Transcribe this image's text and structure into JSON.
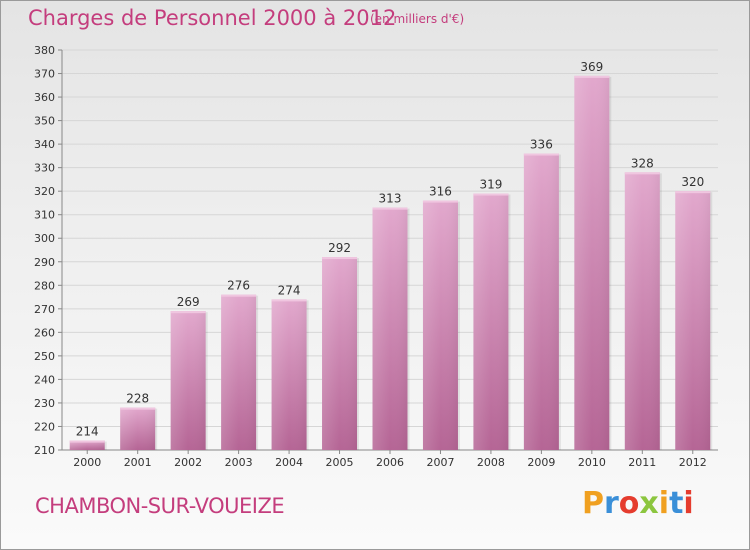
{
  "title": "Charges de Personnel 2000 à 2012",
  "subtitle": "(en milliers d'€)",
  "commune": "CHAMBON-SUR-VOUEIZE",
  "logo": {
    "letters": [
      "P",
      "r",
      "o",
      "x",
      "i",
      "t",
      "i"
    ],
    "colors": [
      "#f0a020",
      "#3a8fd8",
      "#e53c2e",
      "#8cc63f",
      "#f0a020",
      "#3a8fd8",
      "#e53c2e"
    ]
  },
  "colors": {
    "bar_top": "#e2a8cd",
    "bar_bottom": "#b56595",
    "title": "#c43d7d"
  },
  "chart_data": {
    "type": "bar",
    "categories": [
      "2000",
      "2001",
      "2002",
      "2003",
      "2004",
      "2005",
      "2006",
      "2007",
      "2008",
      "2009",
      "2010",
      "2011",
      "2012"
    ],
    "values": [
      214,
      228,
      269,
      276,
      274,
      292,
      313,
      316,
      319,
      336,
      369,
      328,
      320
    ],
    "ylim": [
      210,
      380
    ],
    "yticks": [
      210,
      220,
      230,
      240,
      250,
      260,
      270,
      280,
      290,
      300,
      310,
      320,
      330,
      340,
      350,
      360,
      370,
      380
    ],
    "grid": true,
    "title": "Charges de Personnel 2000 à 2012",
    "xlabel": "",
    "ylabel": ""
  }
}
